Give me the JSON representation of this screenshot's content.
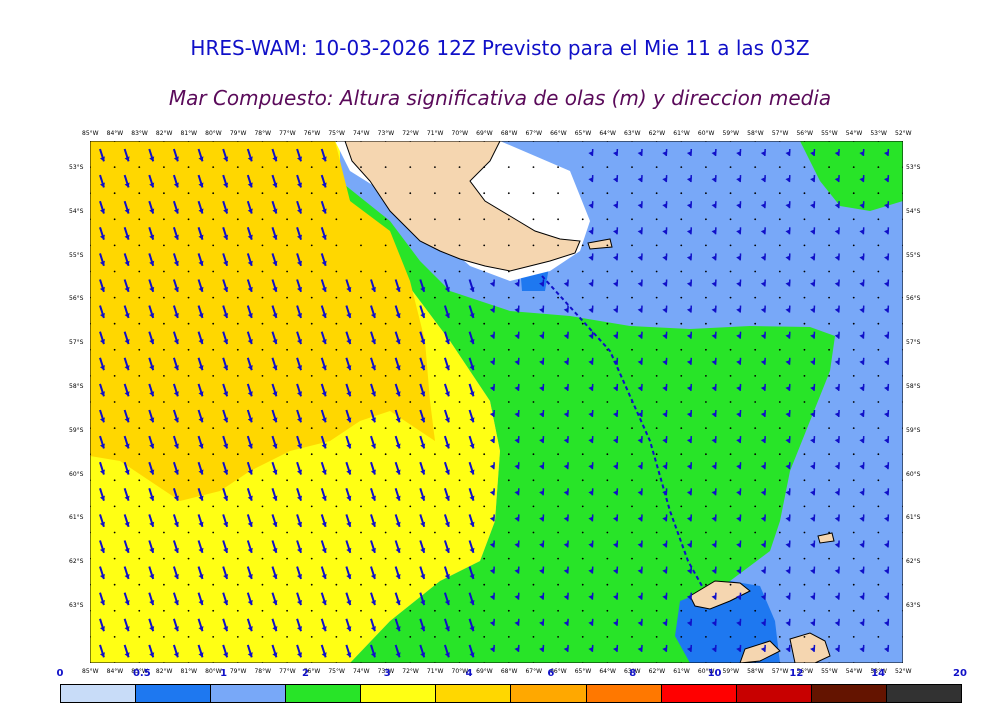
{
  "header": {
    "title": "HRES-WAM: 10-03-2026 12Z Previsto para el Mie 11 a las 03Z",
    "subtitle": "Mar Compuesto: Altura significativa de olas (m) y direccion media"
  },
  "map": {
    "longitude_labels": [
      "85°W",
      "84°W",
      "83°W",
      "82°W",
      "81°W",
      "80°W",
      "79°W",
      "78°W",
      "77°W",
      "76°W",
      "75°W",
      "74°W",
      "73°W",
      "72°W",
      "71°W",
      "70°W",
      "69°W",
      "68°W",
      "67°W",
      "66°W",
      "65°W",
      "64°W",
      "63°W",
      "62°W",
      "61°W",
      "60°W",
      "59°W",
      "58°W",
      "57°W",
      "56°W",
      "55°W",
      "54°W",
      "53°W",
      "52°W"
    ],
    "latitude_labels": [
      "53°S",
      "54°S",
      "55°S",
      "56°S",
      "57°S",
      "58°S",
      "59°S",
      "60°S",
      "61°S",
      "62°S",
      "63°S"
    ],
    "land_color": "#f5d6b0",
    "arrow_color": "#1010c8"
  },
  "colorbar": {
    "tick_labels": [
      "0",
      "0.5",
      "1",
      "2",
      "3",
      "4",
      "6",
      "8",
      "10",
      "12",
      "14",
      "20"
    ],
    "colors": [
      "#c8dcf8",
      "#1e78f0",
      "#78a8f8",
      "#28e428",
      "#ffff14",
      "#ffd700",
      "#ffa800",
      "#ff7800",
      "#ff0000",
      "#c80000",
      "#641400",
      "#323232"
    ]
  }
}
